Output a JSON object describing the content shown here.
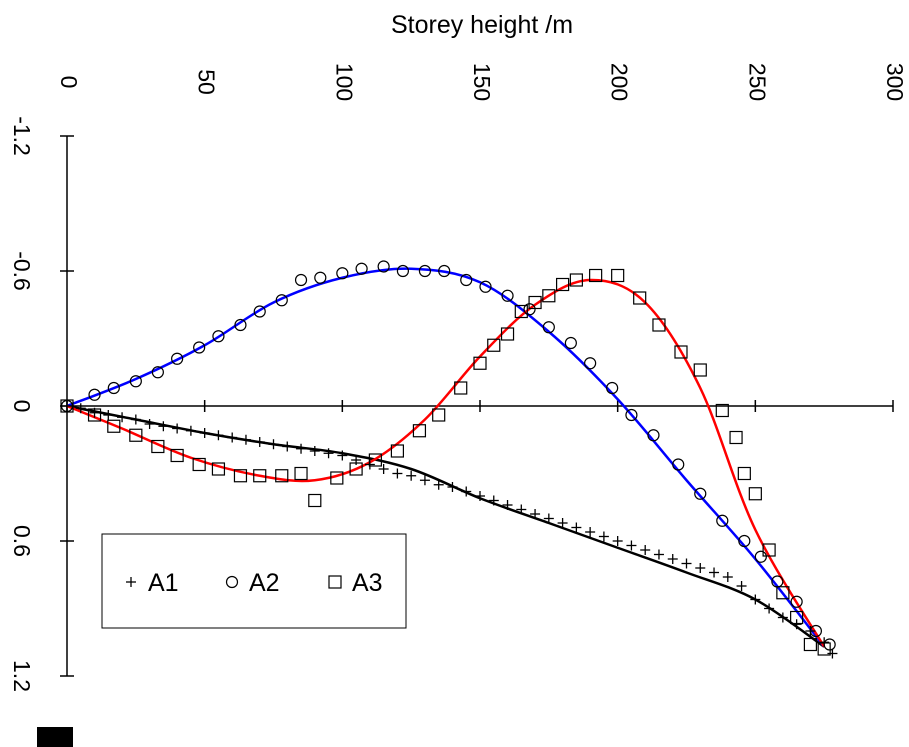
{
  "chart_data": {
    "type": "scatter",
    "orientation": "rotated 90 degrees clockwise (height on horizontal axis, displacement on vertical axis increasing downward)",
    "title": "",
    "xlabel": "Storey height /m",
    "ylabel": "",
    "xlim": [
      0,
      300
    ],
    "ylim": [
      -1.2,
      1.2
    ],
    "xticks": [
      "0",
      "50",
      "100",
      "150",
      "200",
      "250",
      "300"
    ],
    "yticks": [
      "-1.2",
      "-0.6",
      "0",
      "0.6",
      "1.2"
    ],
    "grid": false,
    "legend_position": "bottom-left",
    "series": [
      {
        "name": "A1",
        "marker": "plus",
        "color": "#000000",
        "x": [
          0,
          5,
          10,
          15,
          20,
          25,
          30,
          35,
          40,
          45,
          50,
          55,
          60,
          65,
          70,
          75,
          80,
          85,
          90,
          95,
          100,
          105,
          110,
          115,
          120,
          125,
          130,
          135,
          140,
          145,
          150,
          155,
          160,
          165,
          170,
          175,
          180,
          185,
          190,
          195,
          200,
          205,
          210,
          215,
          220,
          225,
          230,
          235,
          240,
          245,
          250,
          255,
          260,
          265,
          270,
          275,
          278
        ],
        "y": [
          0,
          0.01,
          0.03,
          0.04,
          0.05,
          0.06,
          0.08,
          0.09,
          0.1,
          0.11,
          0.12,
          0.13,
          0.14,
          0.15,
          0.16,
          0.17,
          0.18,
          0.19,
          0.2,
          0.21,
          0.22,
          0.24,
          0.26,
          0.28,
          0.3,
          0.31,
          0.33,
          0.35,
          0.36,
          0.38,
          0.4,
          0.42,
          0.44,
          0.46,
          0.48,
          0.5,
          0.52,
          0.54,
          0.56,
          0.58,
          0.6,
          0.62,
          0.64,
          0.66,
          0.68,
          0.7,
          0.72,
          0.74,
          0.76,
          0.8,
          0.86,
          0.9,
          0.94,
          0.97,
          1.0,
          1.05,
          1.1
        ]
      },
      {
        "name": "A2",
        "marker": "circle",
        "color": "#000000",
        "x": [
          0,
          10,
          17,
          25,
          33,
          40,
          48,
          55,
          63,
          70,
          78,
          85,
          92,
          100,
          107,
          115,
          122,
          130,
          137,
          145,
          152,
          160,
          168,
          175,
          183,
          190,
          198,
          205,
          213,
          222,
          230,
          238,
          246,
          252,
          258,
          265,
          272,
          277
        ],
        "y": [
          0,
          -0.05,
          -0.08,
          -0.11,
          -0.15,
          -0.21,
          -0.26,
          -0.31,
          -0.36,
          -0.42,
          -0.47,
          -0.56,
          -0.57,
          -0.59,
          -0.61,
          -0.62,
          -0.6,
          -0.6,
          -0.6,
          -0.56,
          -0.53,
          -0.49,
          -0.43,
          -0.35,
          -0.28,
          -0.19,
          -0.08,
          0.04,
          0.13,
          0.26,
          0.39,
          0.51,
          0.6,
          0.67,
          0.78,
          0.87,
          1.0,
          1.06
        ]
      },
      {
        "name": "A3",
        "marker": "square",
        "color": "#000000",
        "x": [
          0,
          10,
          17,
          25,
          33,
          40,
          48,
          55,
          63,
          70,
          78,
          85,
          90,
          98,
          105,
          112,
          120,
          128,
          135,
          143,
          150,
          155,
          160,
          165,
          170,
          175,
          180,
          185,
          192,
          200,
          208,
          215,
          223,
          230,
          238,
          243,
          246,
          250,
          255,
          260,
          265,
          270,
          275
        ],
        "y": [
          0,
          0.04,
          0.09,
          0.13,
          0.18,
          0.22,
          0.26,
          0.28,
          0.31,
          0.31,
          0.31,
          0.3,
          0.42,
          0.32,
          0.28,
          0.24,
          0.2,
          0.11,
          0.04,
          -0.08,
          -0.19,
          -0.27,
          -0.32,
          -0.42,
          -0.46,
          -0.49,
          -0.54,
          -0.56,
          -0.58,
          -0.58,
          -0.48,
          -0.36,
          -0.24,
          -0.16,
          0.02,
          0.14,
          0.3,
          0.39,
          0.64,
          0.83,
          0.94,
          1.06,
          1.08
        ]
      }
    ],
    "fit_lines": [
      {
        "color": "#000000",
        "x": [
          0,
          25,
          50,
          75,
          100,
          125,
          150,
          175,
          200,
          225,
          250,
          275
        ],
        "y": [
          0,
          0.06,
          0.12,
          0.17,
          0.21,
          0.28,
          0.41,
          0.52,
          0.63,
          0.74,
          0.86,
          1.07
        ]
      },
      {
        "color": "#0000FF",
        "x": [
          0,
          25,
          50,
          75,
          100,
          125,
          150,
          175,
          200,
          225,
          250,
          275
        ],
        "y": [
          0,
          -0.12,
          -0.27,
          -0.46,
          -0.57,
          -0.61,
          -0.55,
          -0.33,
          -0.03,
          0.33,
          0.68,
          1.07
        ]
      },
      {
        "color": "#FF0000",
        "x": [
          0,
          20,
          45,
          70,
          90,
          110,
          130,
          150,
          170,
          190,
          210,
          230,
          250,
          275
        ],
        "y": [
          0,
          0.1,
          0.23,
          0.31,
          0.33,
          0.25,
          0.06,
          -0.22,
          -0.45,
          -0.56,
          -0.46,
          -0.08,
          0.55,
          1.07
        ]
      }
    ]
  }
}
